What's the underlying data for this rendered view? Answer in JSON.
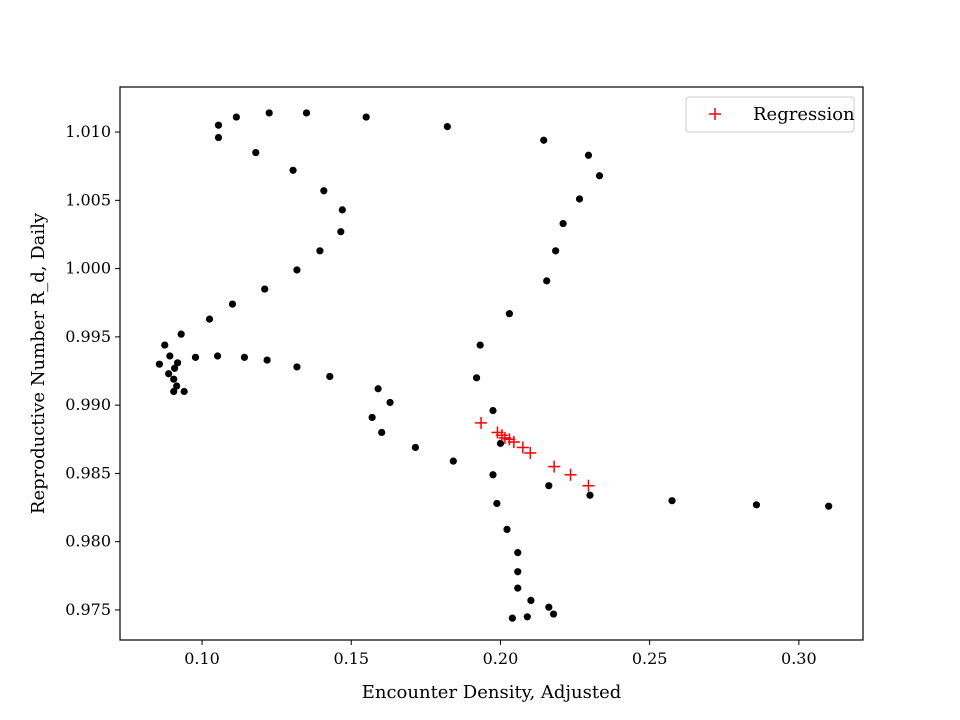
{
  "chart_data": {
    "type": "scatter",
    "title": "",
    "xlabel": "Encounter Density, Adjusted",
    "ylabel": "Reproductive Number R_d, Daily",
    "xlim": [
      0.0725,
      0.3215
    ],
    "ylim": [
      0.9728,
      1.0133
    ],
    "xticks": [
      0.1,
      0.15,
      0.2,
      0.25,
      0.3
    ],
    "xtick_labels": [
      "0.10",
      "0.15",
      "0.20",
      "0.25",
      "0.30"
    ],
    "yticks": [
      0.975,
      0.98,
      0.985,
      0.99,
      0.995,
      1.0,
      1.005,
      1.01
    ],
    "ytick_labels": [
      "0.975",
      "0.980",
      "0.985",
      "0.990",
      "0.995",
      "1.000",
      "1.005",
      "1.010"
    ],
    "grid": false,
    "legend": {
      "position": "upper right",
      "entries": [
        "Regression"
      ]
    },
    "series": [
      {
        "marker": "dot",
        "color": "#000000",
        "points": [
          [
            0.31,
            0.9826
          ],
          [
            0.2858,
            0.9827
          ],
          [
            0.2575,
            0.983
          ],
          [
            0.23,
            0.9834
          ],
          [
            0.2162,
            0.9841
          ],
          [
            0.2,
            0.9872
          ],
          [
            0.1975,
            0.9896
          ],
          [
            0.192,
            0.992
          ],
          [
            0.1932,
            0.9944
          ],
          [
            0.203,
            0.9967
          ],
          [
            0.2155,
            0.9991
          ],
          [
            0.2185,
            1.0013
          ],
          [
            0.221,
            1.0033
          ],
          [
            0.2265,
            1.0051
          ],
          [
            0.2332,
            1.0068
          ],
          [
            0.2295,
            1.0083
          ],
          [
            0.2145,
            1.0094
          ],
          [
            0.1822,
            1.0104
          ],
          [
            0.155,
            1.0111
          ],
          [
            0.135,
            1.0114
          ],
          [
            0.1225,
            1.0114
          ],
          [
            0.1115,
            1.0111
          ],
          [
            0.1055,
            1.0105
          ],
          [
            0.1055,
            1.0096
          ],
          [
            0.118,
            1.0085
          ],
          [
            0.1305,
            1.0072
          ],
          [
            0.1408,
            1.0057
          ],
          [
            0.147,
            1.0043
          ],
          [
            0.1465,
            1.0027
          ],
          [
            0.1395,
            1.0013
          ],
          [
            0.1318,
            0.9999
          ],
          [
            0.121,
            0.9985
          ],
          [
            0.1102,
            0.9974
          ],
          [
            0.1025,
            0.9963
          ],
          [
            0.093,
            0.9952
          ],
          [
            0.0875,
            0.9944
          ],
          [
            0.0892,
            0.9936
          ],
          [
            0.0857,
            0.993
          ],
          [
            0.0918,
            0.9931
          ],
          [
            0.0908,
            0.9927
          ],
          [
            0.0888,
            0.9923
          ],
          [
            0.0905,
            0.9919
          ],
          [
            0.0915,
            0.9914
          ],
          [
            0.0905,
            0.991
          ],
          [
            0.094,
            0.991
          ],
          [
            0.0978,
            0.9935
          ],
          [
            0.1052,
            0.9936
          ],
          [
            0.1142,
            0.9935
          ],
          [
            0.1218,
            0.9933
          ],
          [
            0.1318,
            0.9928
          ],
          [
            0.1428,
            0.9921
          ],
          [
            0.159,
            0.9912
          ],
          [
            0.163,
            0.9902
          ],
          [
            0.157,
            0.9891
          ],
          [
            0.1602,
            0.988
          ],
          [
            0.1715,
            0.9869
          ],
          [
            0.1842,
            0.9859
          ],
          [
            0.1975,
            0.9849
          ],
          [
            0.1988,
            0.9828
          ],
          [
            0.2022,
            0.9809
          ],
          [
            0.2058,
            0.9792
          ],
          [
            0.2058,
            0.9778
          ],
          [
            0.2058,
            0.9766
          ],
          [
            0.2102,
            0.9757
          ],
          [
            0.2162,
            0.9752
          ],
          [
            0.2178,
            0.9747
          ],
          [
            0.204,
            0.9744
          ],
          [
            0.209,
            0.9745
          ]
        ]
      },
      {
        "name": "Regression",
        "marker": "plus",
        "color": "#ff0000",
        "points": [
          [
            0.1935,
            0.9887
          ],
          [
            0.199,
            0.988
          ],
          [
            0.2005,
            0.9878
          ],
          [
            0.2015,
            0.9876
          ],
          [
            0.203,
            0.9875
          ],
          [
            0.2045,
            0.9873
          ],
          [
            0.2075,
            0.9869
          ],
          [
            0.21,
            0.9865
          ],
          [
            0.218,
            0.9855
          ],
          [
            0.2235,
            0.9849
          ],
          [
            0.2295,
            0.9841
          ]
        ]
      }
    ]
  }
}
